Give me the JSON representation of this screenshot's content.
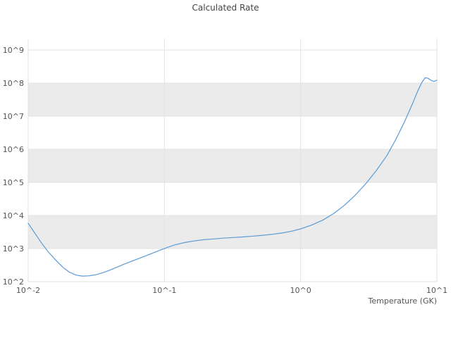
{
  "chart_data": {
    "type": "line",
    "title": "Calculated Rate",
    "xlabel": "Temperature (GK)",
    "ylabel": "",
    "x_scale": "log",
    "y_scale": "log",
    "xlim_log": [
      -2,
      1
    ],
    "ylim_log": [
      2,
      9.34
    ],
    "grid": true,
    "xticks": [
      {
        "log": -2,
        "label": "10^-2"
      },
      {
        "log": -1,
        "label": "10^-1"
      },
      {
        "log": 0,
        "label": "10^0"
      },
      {
        "log": 1,
        "label": "10^1"
      }
    ],
    "yticks": [
      {
        "log": 2,
        "label": "10^2"
      },
      {
        "log": 3,
        "label": "10^3"
      },
      {
        "log": 4,
        "label": "10^4"
      },
      {
        "log": 5,
        "label": "10^5"
      },
      {
        "log": 6,
        "label": "10^6"
      },
      {
        "log": 7,
        "label": "10^7"
      },
      {
        "log": 8,
        "label": "10^8"
      },
      {
        "log": 9,
        "label": "10^9"
      }
    ],
    "bands_log": [
      [
        3,
        4
      ],
      [
        5,
        6
      ],
      [
        7,
        8
      ]
    ],
    "colors": {
      "background": "#ffffff",
      "band": "#ebebeb",
      "grid": "#e2e2e2",
      "text": "#555555",
      "line": "#5b9bd5"
    },
    "series": [
      {
        "name": "calculated-rate",
        "color": "#5b9bd5",
        "points": [
          [
            0.01,
            5800
          ],
          [
            0.0112,
            2900
          ],
          [
            0.0125,
            1500
          ],
          [
            0.014,
            800
          ],
          [
            0.016,
            440
          ],
          [
            0.018,
            270
          ],
          [
            0.02,
            195
          ],
          [
            0.0225,
            158
          ],
          [
            0.025,
            147
          ],
          [
            0.028,
            150
          ],
          [
            0.032,
            165
          ],
          [
            0.037,
            200
          ],
          [
            0.043,
            255
          ],
          [
            0.05,
            330
          ],
          [
            0.058,
            420
          ],
          [
            0.068,
            540
          ],
          [
            0.08,
            700
          ],
          [
            0.092,
            880
          ],
          [
            0.105,
            1080
          ],
          [
            0.12,
            1300
          ],
          [
            0.14,
            1520
          ],
          [
            0.165,
            1700
          ],
          [
            0.195,
            1850
          ],
          [
            0.23,
            1960
          ],
          [
            0.27,
            2060
          ],
          [
            0.32,
            2160
          ],
          [
            0.38,
            2260
          ],
          [
            0.45,
            2380
          ],
          [
            0.53,
            2520
          ],
          [
            0.62,
            2700
          ],
          [
            0.73,
            2950
          ],
          [
            0.86,
            3350
          ],
          [
            1.0,
            3950
          ],
          [
            1.2,
            5100
          ],
          [
            1.45,
            7200
          ],
          [
            1.75,
            11500
          ],
          [
            2.1,
            20500
          ],
          [
            2.5,
            40000
          ],
          [
            3.0,
            90000
          ],
          [
            3.6,
            230000
          ],
          [
            4.3,
            650000
          ],
          [
            5.0,
            2000000.0
          ],
          [
            5.8,
            7000000.0
          ],
          [
            6.6,
            23000000.0
          ],
          [
            7.2,
            55000000.0
          ],
          [
            7.7,
            100000000.0
          ],
          [
            8.2,
            145000000.0
          ],
          [
            8.6,
            140000000.0
          ],
          [
            9.1,
            120000000.0
          ],
          [
            9.5,
            112000000.0
          ],
          [
            10.0,
            122000000.0
          ]
        ]
      }
    ]
  }
}
